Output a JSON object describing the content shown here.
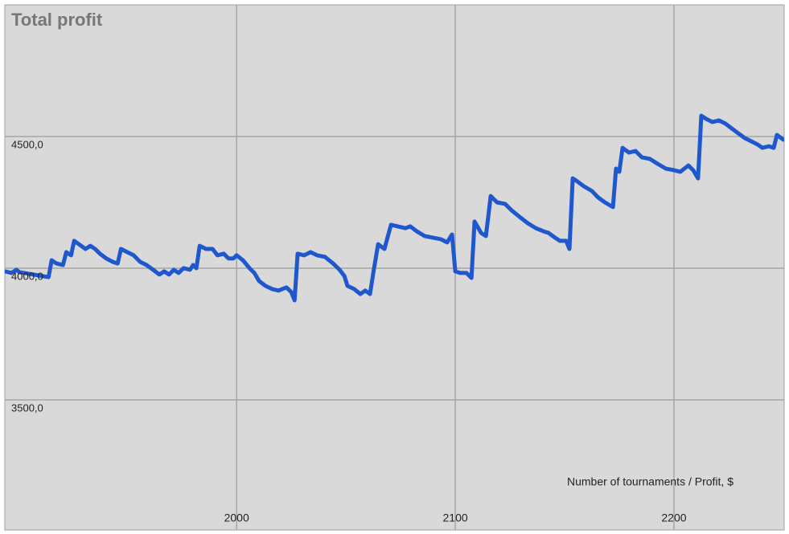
{
  "chart_data": {
    "type": "line",
    "title": "Total profit",
    "annotation": "Number of tournaments / Profit, $",
    "xlim": [
      1894,
      2250.4
    ],
    "xticks": [
      2000,
      2100,
      2200
    ],
    "ylim": [
      3006,
      5000
    ],
    "yticks": [
      {
        "value": 3500,
        "label": "3500,0"
      },
      {
        "value": 4000,
        "label": "4000,0"
      },
      {
        "value": 4500,
        "label": "4500,0"
      }
    ],
    "grid": true,
    "x": [
      1894.1,
      1897.1,
      1899.3,
      1900.7,
      1914.0,
      1915.4,
      1917.6,
      1920.6,
      1922.1,
      1924.3,
      1925.7,
      1927.9,
      1930.9,
      1933.1,
      1935.3,
      1937.5,
      1940.4,
      1943.4,
      1945.6,
      1947.1,
      1950.0,
      1952.9,
      1955.9,
      1958.8,
      1961.8,
      1964.7,
      1966.9,
      1969.1,
      1971.3,
      1973.5,
      1975.7,
      1978.7,
      1980.1,
      1981.6,
      1983.1,
      1986.0,
      1989.0,
      1991.2,
      1994.1,
      1996.3,
      1998.5,
      2000.0,
      2002.9,
      2005.9,
      2008.1,
      2010.3,
      2013.2,
      2016.2,
      2019.1,
      2022.8,
      2025.0,
      2026.5,
      2027.9,
      2030.9,
      2033.8,
      2036.8,
      2040.4,
      2044.1,
      2047.1,
      2049.3,
      2050.7,
      2053.7,
      2056.6,
      2058.8,
      2061.0,
      2062.5,
      2064.7,
      2067.6,
      2070.6,
      2073.5,
      2077.2,
      2079.4,
      2082.4,
      2086.0,
      2089.7,
      2093.4,
      2096.3,
      2098.5,
      2100.0,
      2102.2,
      2105.1,
      2107.4,
      2108.8,
      2111.8,
      2114.0,
      2116.2,
      2119.1,
      2122.8,
      2125.7,
      2129.4,
      2133.1,
      2136.8,
      2140.4,
      2142.6,
      2145.6,
      2147.8,
      2150.7,
      2152.2,
      2153.7,
      2155.9,
      2158.8,
      2162.5,
      2165.4,
      2168.4,
      2172.1,
      2173.5,
      2175.0,
      2176.5,
      2179.4,
      2182.4,
      2185.3,
      2189.0,
      2192.6,
      2196.3,
      2200.0,
      2202.9,
      2206.6,
      2208.8,
      2211.0,
      2212.5,
      2214.7,
      2217.6,
      2220.6,
      2223.5,
      2226.5,
      2229.4,
      2232.4,
      2235.3,
      2238.2,
      2240.4,
      2243.4,
      2245.6,
      2247.1,
      2250.0
    ],
    "series": [
      {
        "name": "Profit",
        "color": "#1f57cf",
        "values": [
          3988,
          3982,
          3994,
          3985,
          3966,
          4030,
          4018,
          4012,
          4061,
          4049,
          4104,
          4091,
          4073,
          4085,
          4073,
          4055,
          4037,
          4024,
          4018,
          4073,
          4061,
          4049,
          4024,
          4012,
          3994,
          3976,
          3988,
          3976,
          3994,
          3982,
          4000,
          3994,
          4012,
          4000,
          4085,
          4073,
          4073,
          4049,
          4055,
          4037,
          4037,
          4049,
          4030,
          4000,
          3982,
          3951,
          3933,
          3921,
          3915,
          3927,
          3909,
          3878,
          4055,
          4049,
          4061,
          4049,
          4043,
          4018,
          3994,
          3970,
          3933,
          3921,
          3902,
          3915,
          3902,
          3982,
          4091,
          4073,
          4165,
          4159,
          4152,
          4159,
          4140,
          4122,
          4116,
          4110,
          4098,
          4128,
          3988,
          3982,
          3982,
          3963,
          4177,
          4134,
          4122,
          4274,
          4250,
          4244,
          4220,
          4195,
          4171,
          4152,
          4140,
          4134,
          4116,
          4104,
          4104,
          4073,
          4341,
          4329,
          4311,
          4293,
          4268,
          4250,
          4232,
          4378,
          4366,
          4457,
          4439,
          4445,
          4421,
          4415,
          4396,
          4378,
          4372,
          4366,
          4390,
          4372,
          4341,
          4579,
          4567,
          4555,
          4561,
          4549,
          4530,
          4512,
          4494,
          4482,
          4470,
          4457,
          4463,
          4457,
          4506,
          4488
        ]
      }
    ]
  }
}
